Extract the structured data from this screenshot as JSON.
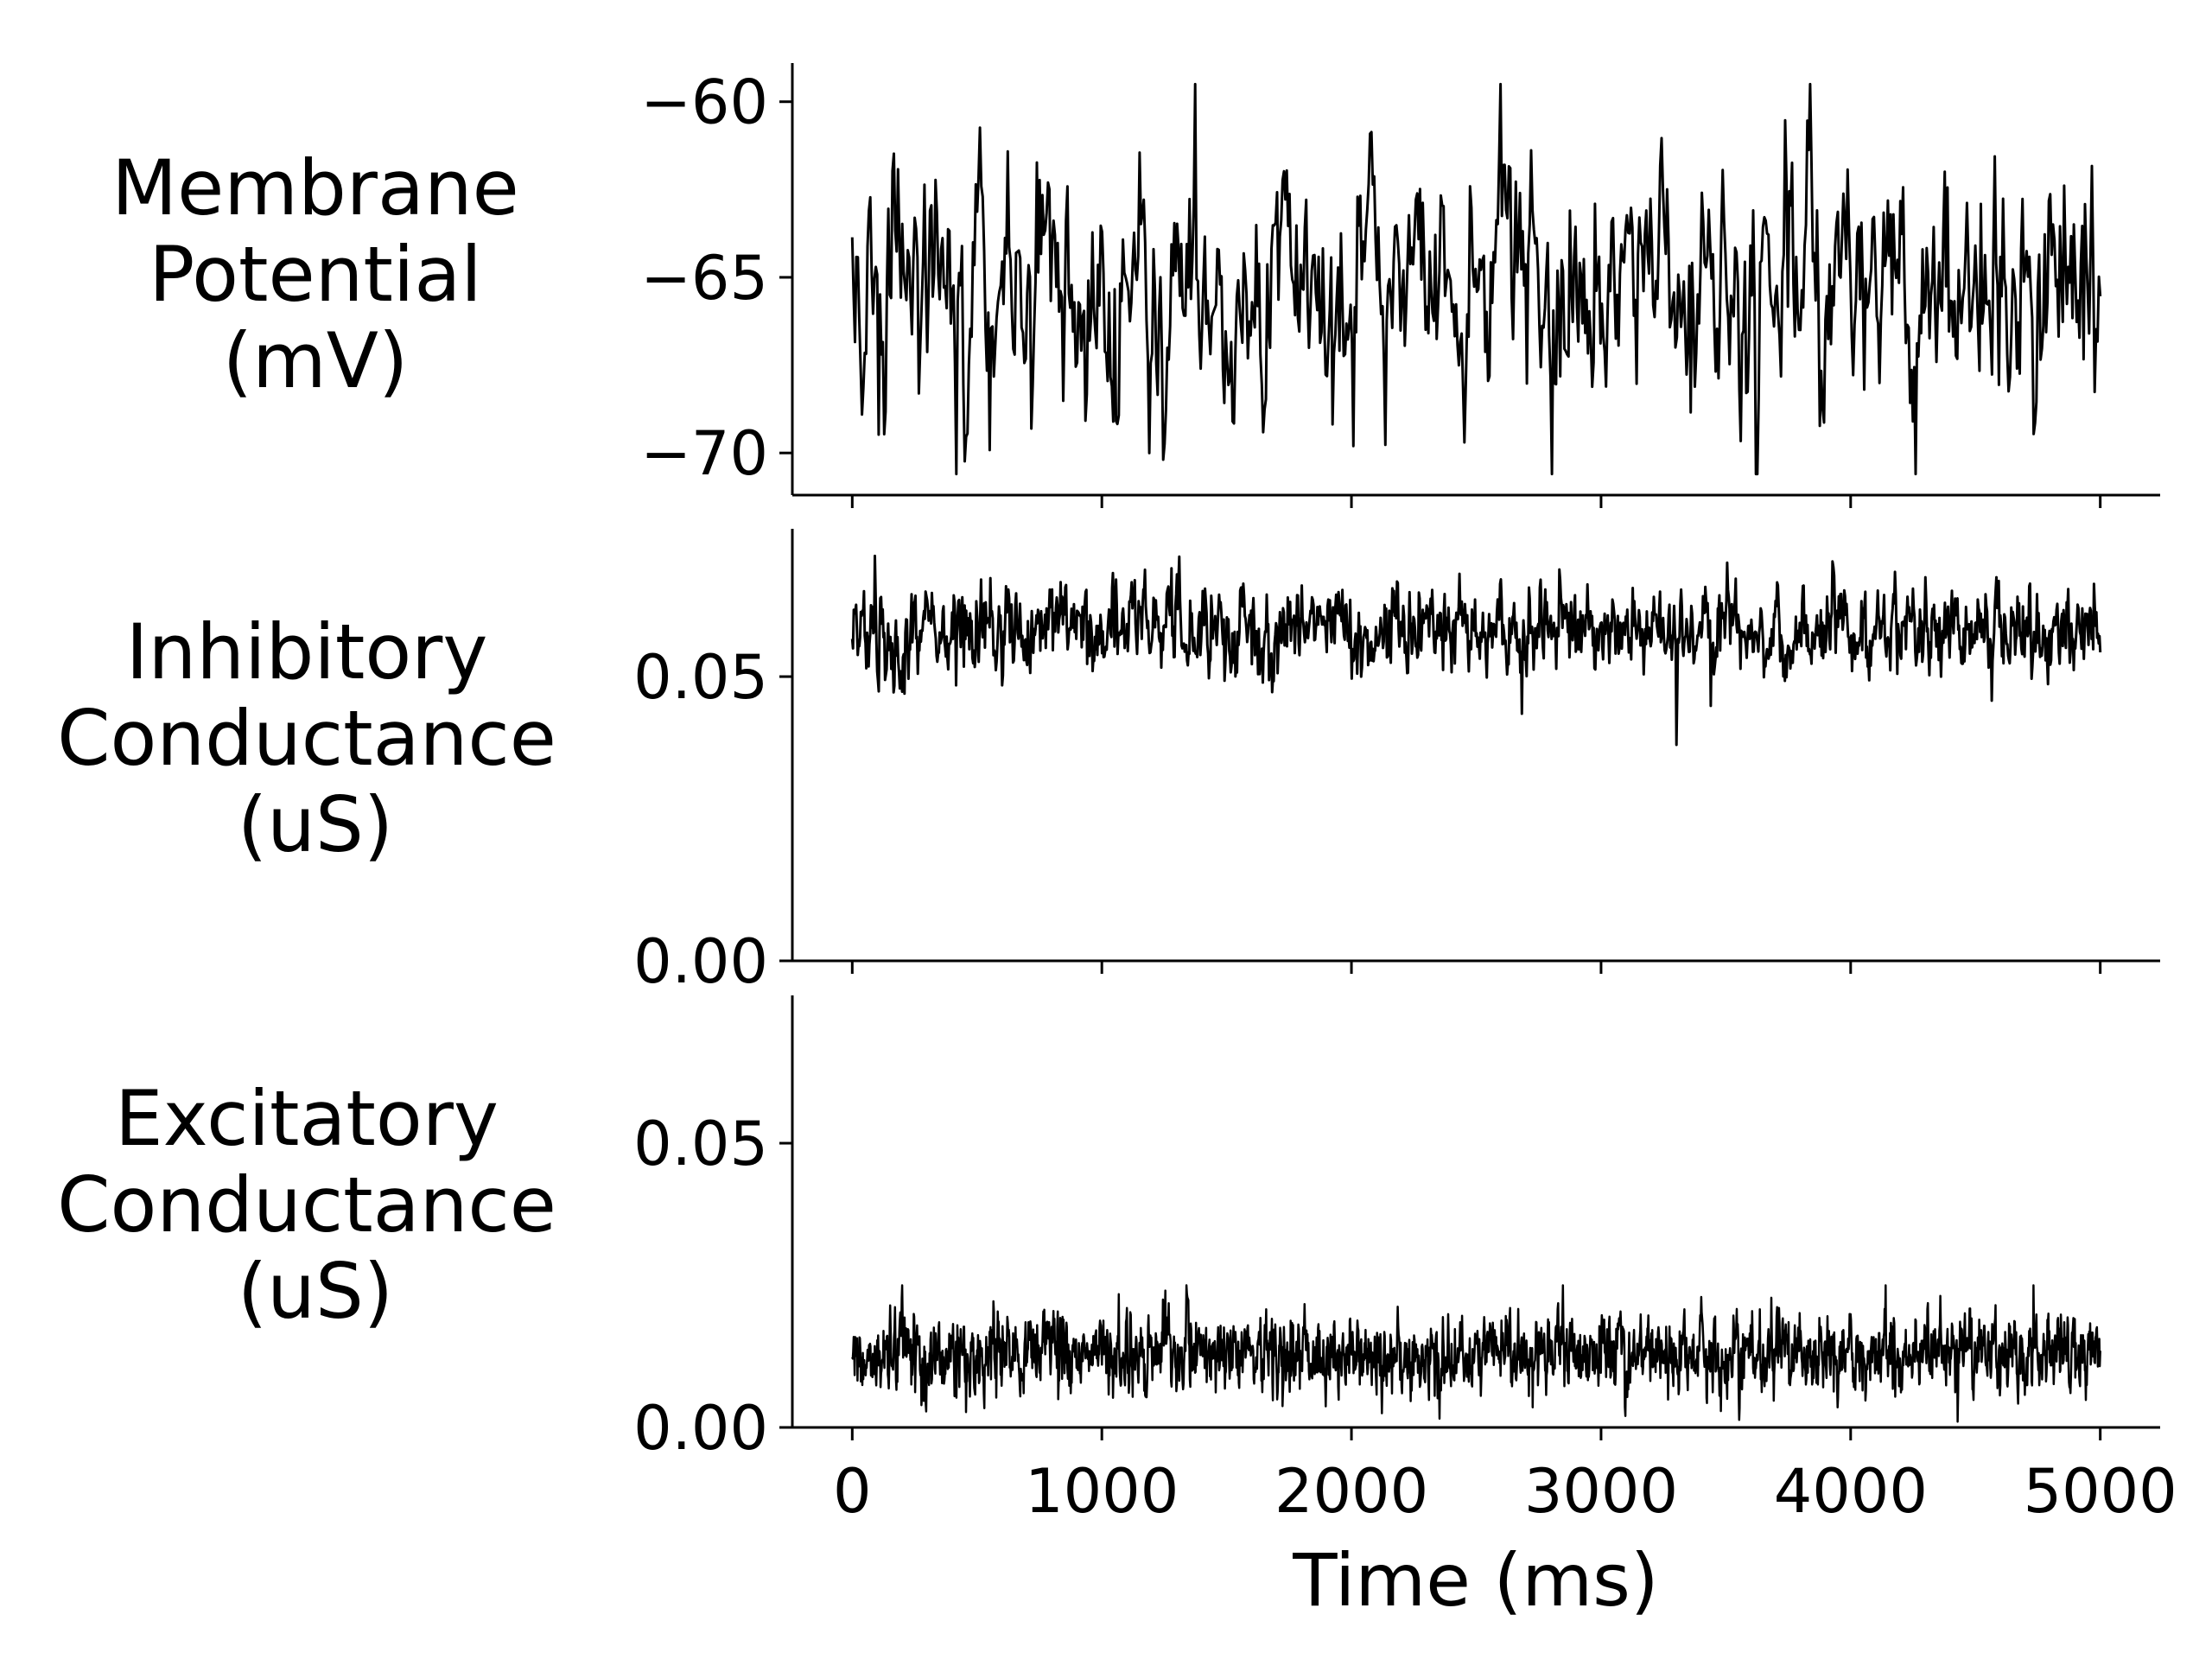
{
  "colors": {
    "trace": "#000000",
    "axis": "#000000",
    "background": "#ffffff"
  },
  "chart_data": [
    {
      "type": "line",
      "panel": "top",
      "ylabel": [
        "Membrane",
        "Potential",
        "(mV)"
      ],
      "xlim": [
        -240,
        5240
      ],
      "ylim": [
        -71.2,
        -58.9
      ],
      "yticks": [
        -60,
        -65,
        -70
      ],
      "ytick_labels": [
        "−60",
        "−65",
        "−70"
      ],
      "series": [
        {
          "name": "membrane_potential",
          "mean": -65.2,
          "std": 1.7,
          "min": -70.6,
          "max": -59.5,
          "n_points": 900
        }
      ]
    },
    {
      "type": "line",
      "panel": "middle",
      "ylabel": [
        "Inhibitory",
        "Conductance",
        "(uS)"
      ],
      "xlim": [
        -240,
        5240
      ],
      "ylim": [
        0,
        0.076
      ],
      "yticks": [
        0.05,
        0.0
      ],
      "ytick_labels": [
        "0.05",
        "0.00"
      ],
      "series": [
        {
          "name": "inhibitory_conductance",
          "mean": 0.058,
          "std": 0.004,
          "min": 0.038,
          "max": 0.075,
          "n_points": 1600
        }
      ]
    },
    {
      "type": "line",
      "panel": "bottom",
      "ylabel": [
        "Excitatory",
        "Conductance",
        "(uS)"
      ],
      "xlim": [
        -240,
        5240
      ],
      "ylim": [
        0,
        0.076
      ],
      "yticks": [
        0.05,
        0.0
      ],
      "ytick_labels": [
        "0.05",
        "0.00"
      ],
      "xticks": [
        0,
        1000,
        2000,
        3000,
        4000,
        5000
      ],
      "xtick_labels": [
        "0",
        "1000",
        "2000",
        "3000",
        "4000",
        "5000"
      ],
      "xlabel": "Time (ms)",
      "series": [
        {
          "name": "excitatory_conductance",
          "mean": 0.013,
          "std": 0.0035,
          "min": 0.001,
          "max": 0.025,
          "n_points": 2600
        }
      ]
    }
  ]
}
